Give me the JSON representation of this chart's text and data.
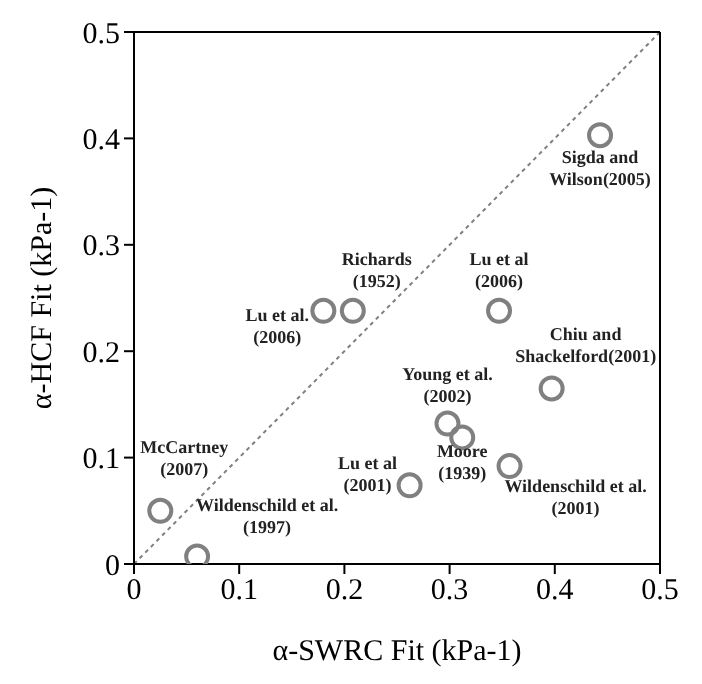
{
  "chart_data": {
    "type": "scatter",
    "xlabel": "α-SWRC Fit (kPa-1)",
    "ylabel": "α-HCF Fit (kPa-1)",
    "xlim": [
      0,
      0.5
    ],
    "xticks": [
      0,
      0.1,
      0.2,
      0.3,
      0.4,
      0.5
    ],
    "ylim": [
      0,
      0.5
    ],
    "yticks": [
      0,
      0.1,
      0.2,
      0.3,
      0.4,
      0.5
    ],
    "grid": false,
    "legend": false,
    "series": [
      {
        "color": "#808080",
        "marker": "circle",
        "x": [
          0.025,
          0.06,
          0.18,
          0.208,
          0.262,
          0.298,
          0.312,
          0.347,
          0.357,
          0.397,
          0.443
        ],
        "values": [
          0.05,
          0.007,
          0.238,
          0.238,
          0.074,
          0.132,
          0.119,
          0.238,
          0.092,
          0.165,
          0.403
        ]
      },
      {
        "type": "line",
        "color": "#808080",
        "marker": "none",
        "line_style": "dotted",
        "x": [
          0,
          0.5
        ],
        "values": [
          0,
          0.5
        ]
      }
    ],
    "annotations": [
      {
        "text": "McCartney\n(2007)",
        "x": 0.025,
        "y": 0.05
      },
      {
        "text": "Wildenschild et al.\n(1997)",
        "x": 0.06,
        "y": 0.007
      },
      {
        "text": "Lu et al.\n(2006)",
        "x": 0.18,
        "y": 0.238
      },
      {
        "text": "Richards\n(1952)",
        "x": 0.208,
        "y": 0.238
      },
      {
        "text": "Lu et al\n(2001)",
        "x": 0.262,
        "y": 0.074
      },
      {
        "text": "Young et al.\n(2002)",
        "x": 0.298,
        "y": 0.132
      },
      {
        "text": "Moore\n(1939)",
        "x": 0.312,
        "y": 0.119
      },
      {
        "text": "Lu et al\n(2006)",
        "x": 0.347,
        "y": 0.238
      },
      {
        "text": "Wildenschild et al.\n(2001)",
        "x": 0.357,
        "y": 0.092
      },
      {
        "text": "Chiu and\nShackelford(2001)",
        "x": 0.397,
        "y": 0.165
      },
      {
        "text": "Sigda and\nWilson(2005)",
        "x": 0.443,
        "y": 0.403
      }
    ]
  }
}
